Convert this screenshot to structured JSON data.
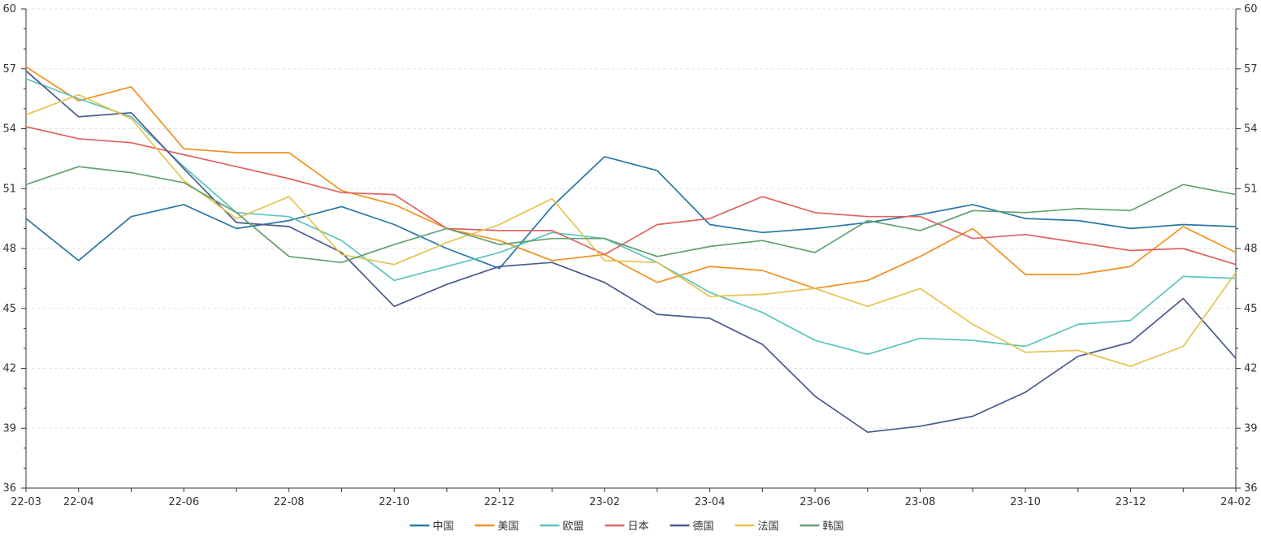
{
  "chart_data": {
    "type": "line",
    "title": "",
    "xlabel": "",
    "ylabel": "",
    "ylim": [
      36,
      60
    ],
    "y_ticks": [
      36,
      39,
      42,
      45,
      48,
      51,
      54,
      57,
      60
    ],
    "y_axis_right": true,
    "grid": "horizontal-dashed",
    "legend_position": "bottom-center",
    "x": [
      "22-03",
      "22-04",
      "22-05",
      "22-06",
      "22-07",
      "22-08",
      "22-09",
      "22-10",
      "22-11",
      "22-12",
      "23-01",
      "23-02",
      "23-03",
      "23-04",
      "23-05",
      "23-06",
      "23-07",
      "23-08",
      "23-09",
      "23-10",
      "23-11",
      "23-12",
      "24-01",
      "24-02"
    ],
    "x_tick_labels": [
      "22-03",
      "22-04",
      "",
      "22-06",
      "",
      "22-08",
      "",
      "22-10",
      "",
      "22-12",
      "",
      "23-02",
      "",
      "23-04",
      "",
      "23-06",
      "",
      "23-08",
      "",
      "23-10",
      "",
      "23-12",
      "",
      "24-02"
    ],
    "series": [
      {
        "name": "中国",
        "color": "#2878a5",
        "values": [
          49.5,
          47.4,
          49.6,
          50.2,
          49.0,
          49.4,
          50.1,
          49.2,
          48.0,
          47.0,
          50.1,
          52.6,
          51.9,
          49.2,
          48.8,
          49.0,
          49.3,
          49.7,
          50.2,
          49.5,
          49.4,
          49.0,
          49.2,
          49.1
        ]
      },
      {
        "name": "美国",
        "color": "#f0901e",
        "values": [
          57.1,
          55.4,
          56.1,
          53.0,
          52.8,
          52.8,
          50.9,
          50.2,
          49.0,
          48.4,
          47.4,
          47.7,
          46.3,
          47.1,
          46.9,
          46.0,
          46.4,
          47.6,
          49.0,
          46.7,
          46.7,
          47.1,
          49.1,
          47.8
        ]
      },
      {
        "name": "欧盟",
        "color": "#5bc4bf",
        "values": [
          56.5,
          55.5,
          54.6,
          52.1,
          49.8,
          49.6,
          48.4,
          46.4,
          47.1,
          47.8,
          48.8,
          48.5,
          47.3,
          45.8,
          44.8,
          43.4,
          42.7,
          43.5,
          43.4,
          43.1,
          44.2,
          44.4,
          46.6,
          46.5
        ]
      },
      {
        "name": "日本",
        "color": "#e06360",
        "values": [
          54.1,
          53.5,
          53.3,
          52.7,
          52.1,
          51.5,
          50.8,
          50.7,
          49.0,
          48.9,
          48.9,
          47.7,
          49.2,
          49.5,
          50.6,
          49.8,
          49.6,
          49.6,
          48.5,
          48.7,
          48.3,
          47.9,
          48.0,
          47.2
        ]
      },
      {
        "name": "德国",
        "color": "#4a5a8e",
        "values": [
          56.9,
          54.6,
          54.8,
          52.0,
          49.3,
          49.1,
          47.8,
          45.1,
          46.2,
          47.1,
          47.3,
          46.3,
          44.7,
          44.5,
          43.2,
          40.6,
          38.8,
          39.1,
          39.6,
          40.8,
          42.6,
          43.3,
          45.5,
          42.5
        ]
      },
      {
        "name": "法国",
        "color": "#e6c350",
        "values": [
          54.7,
          55.7,
          54.5,
          51.4,
          49.5,
          50.6,
          47.7,
          47.2,
          48.3,
          49.2,
          50.5,
          47.4,
          47.3,
          45.6,
          45.7,
          46.0,
          45.1,
          46.0,
          44.2,
          42.8,
          42.9,
          42.1,
          43.1,
          46.8
        ]
      },
      {
        "name": "韩国",
        "color": "#64a070",
        "values": [
          51.2,
          52.1,
          51.8,
          51.3,
          49.8,
          47.6,
          47.3,
          48.2,
          49.0,
          48.2,
          48.5,
          48.5,
          47.6,
          48.1,
          48.4,
          47.8,
          49.4,
          48.9,
          49.9,
          49.8,
          50.0,
          49.9,
          51.2,
          50.7
        ]
      }
    ]
  }
}
